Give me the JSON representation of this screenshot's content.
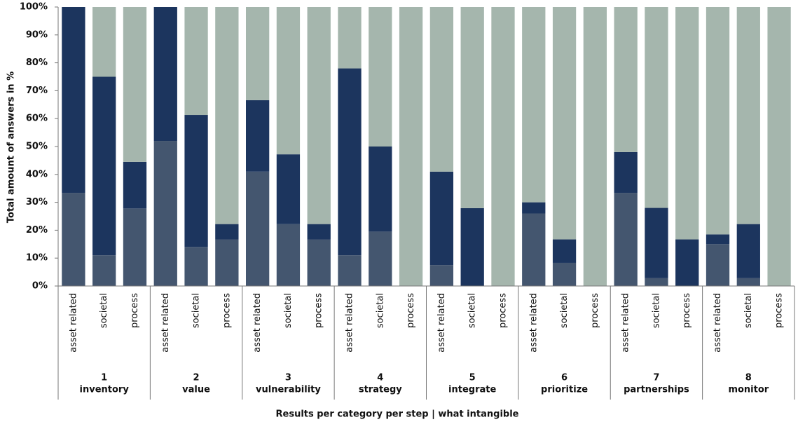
{
  "chart_data": {
    "type": "stacked-bar",
    "y_label": "Total amount of answers in %",
    "x_label": "Results per category per step | what intangible",
    "categories": [
      "asset related",
      "societal",
      "process",
      "asset related",
      "societal",
      "process",
      "asset related",
      "societal",
      "process",
      "asset related",
      "societal",
      "process",
      "asset related",
      "societal",
      "process",
      "asset related",
      "societal",
      "process",
      "asset related",
      "societal",
      "process",
      "asset related",
      "societal",
      "process"
    ],
    "groups": [
      {
        "number": "1",
        "label": "inventory"
      },
      {
        "number": "2",
        "label": "value"
      },
      {
        "number": "3",
        "label": "vulnerability"
      },
      {
        "number": "4",
        "label": "strategy"
      },
      {
        "number": "5",
        "label": "integrate"
      },
      {
        "number": "6",
        "label": "prioritize"
      },
      {
        "number": "7",
        "label": "partnerships"
      },
      {
        "number": "8",
        "label": "monitor"
      }
    ],
    "series": [
      {
        "color": "#44566f",
        "values": [
          33.4,
          11,
          27.8,
          52,
          14,
          16.7,
          41,
          22.2,
          16.7,
          11,
          19.5,
          0,
          7.5,
          0,
          0,
          26,
          8.3,
          0,
          33.4,
          2.8,
          0,
          15,
          2.8,
          0
        ]
      },
      {
        "color": "#1c355e",
        "values": [
          66.6,
          64,
          16.7,
          48,
          47.3,
          5.5,
          25.6,
          25,
          5.5,
          67,
          30.5,
          0,
          33.5,
          27.9,
          0,
          4,
          8.4,
          0,
          14.6,
          25.2,
          16.7,
          3.5,
          19.4,
          0
        ]
      },
      {
        "color": "#a5b6ad",
        "values": [
          0,
          25,
          55.5,
          0,
          38.7,
          77.8,
          33.4,
          52.8,
          77.8,
          22,
          50,
          100,
          59,
          72.1,
          100,
          70,
          83.3,
          100,
          52,
          72,
          83.3,
          81.5,
          77.8,
          100
        ]
      }
    ],
    "ylim": [
      0,
      100
    ],
    "yticks": [
      {
        "value": 0,
        "label": "0%"
      },
      {
        "value": 10,
        "label": "10%"
      },
      {
        "value": 20,
        "label": "20%"
      },
      {
        "value": 30,
        "label": "30%"
      },
      {
        "value": 40,
        "label": "40%"
      },
      {
        "value": 50,
        "label": "50%"
      },
      {
        "value": 60,
        "label": "60%"
      },
      {
        "value": 70,
        "label": "70%"
      },
      {
        "value": 80,
        "label": "80%"
      },
      {
        "value": 90,
        "label": "90%"
      },
      {
        "value": 100,
        "label": "100%"
      }
    ]
  }
}
